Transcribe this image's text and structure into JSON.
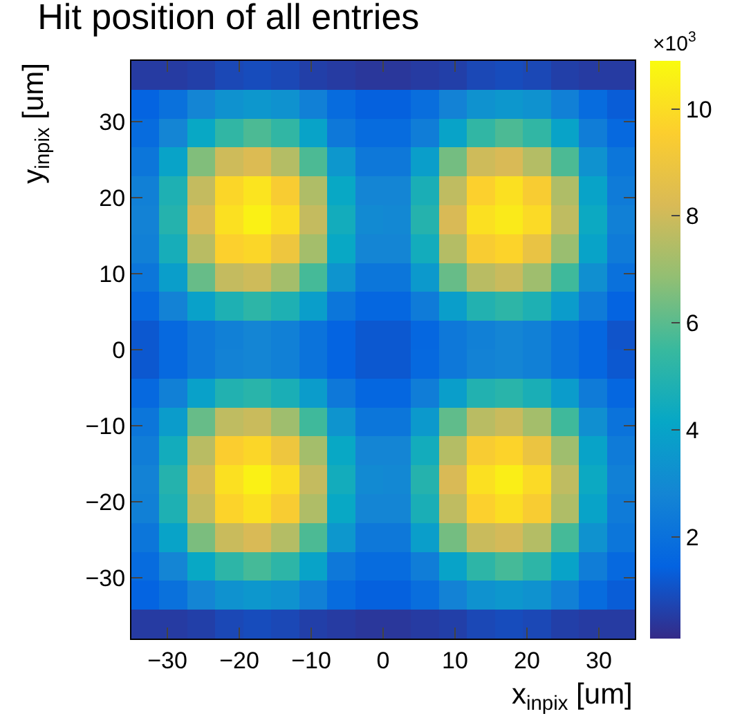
{
  "chart_data": {
    "type": "heatmap",
    "title": "Hit position of all entries",
    "xlabel": "x$_{inpix}$ [um]",
    "ylabel": "y$_{inpix}$ [um]",
    "clabel": "×10$^{3}$",
    "xlim": [
      -35,
      35
    ],
    "ylim": [
      -38,
      38
    ],
    "xticks": [
      -30,
      -20,
      -10,
      0,
      10,
      20,
      30
    ],
    "yticks": [
      -30,
      -20,
      -10,
      0,
      10,
      20,
      30
    ],
    "clim": [
      0.1,
      10.9
    ],
    "cticks": [
      2,
      4,
      6,
      8,
      10
    ],
    "cells": [
      [
        0.5,
        0.5,
        0.6,
        0.8,
        0.9,
        0.8,
        0.6,
        0.5,
        0.4,
        0.4,
        0.5,
        0.6,
        0.8,
        0.9,
        0.8,
        0.6,
        0.5,
        0.5
      ],
      [
        1.5,
        2.0,
        2.8,
        3.3,
        3.5,
        3.3,
        2.6,
        1.8,
        1.4,
        1.4,
        1.9,
        2.7,
        3.3,
        3.5,
        3.3,
        2.6,
        1.8,
        1.3
      ],
      [
        1.8,
        2.8,
        4.2,
        5.3,
        5.8,
        5.3,
        4.0,
        2.3,
        1.8,
        1.8,
        2.5,
        4.0,
        5.3,
        5.8,
        5.3,
        4.0,
        2.5,
        1.7
      ],
      [
        2.2,
        4.0,
        6.6,
        8.0,
        8.3,
        7.5,
        5.8,
        3.5,
        2.3,
        2.3,
        3.8,
        6.4,
        8.0,
        8.2,
        7.5,
        5.8,
        3.3,
        2.2
      ],
      [
        2.6,
        4.8,
        7.8,
        9.8,
        10.2,
        9.4,
        7.4,
        4.2,
        2.8,
        2.8,
        4.7,
        7.7,
        9.6,
        10.1,
        9.4,
        7.4,
        4.0,
        2.4
      ],
      [
        2.7,
        5.0,
        8.2,
        10.1,
        10.6,
        10.0,
        7.8,
        4.5,
        3.0,
        2.9,
        5.0,
        8.2,
        10.1,
        10.4,
        9.9,
        7.7,
        4.3,
        2.6
      ],
      [
        2.6,
        4.6,
        7.6,
        9.6,
        9.8,
        9.0,
        7.2,
        4.2,
        2.8,
        2.8,
        4.5,
        7.5,
        9.4,
        9.7,
        8.8,
        7.0,
        4.0,
        2.4
      ],
      [
        2.2,
        3.8,
        6.2,
        7.8,
        8.0,
        7.2,
        5.7,
        3.4,
        2.2,
        2.2,
        3.6,
        6.2,
        7.6,
        7.9,
        7.1,
        5.6,
        3.2,
        2.0
      ],
      [
        1.7,
        2.7,
        3.9,
        4.8,
        5.2,
        4.8,
        3.8,
        2.2,
        1.6,
        1.6,
        2.4,
        3.8,
        4.9,
        5.2,
        4.8,
        3.7,
        2.4,
        1.5
      ],
      [
        1.2,
        1.7,
        2.3,
        2.6,
        2.8,
        2.6,
        2.1,
        1.5,
        1.2,
        1.2,
        1.6,
        2.3,
        2.6,
        2.8,
        2.6,
        2.1,
        1.6,
        1.1
      ],
      [
        1.2,
        1.7,
        2.3,
        2.7,
        2.8,
        2.6,
        2.1,
        1.5,
        1.2,
        1.2,
        1.7,
        2.3,
        2.7,
        2.8,
        2.6,
        2.1,
        1.6,
        1.2
      ],
      [
        1.7,
        2.6,
        3.9,
        4.9,
        5.1,
        4.7,
        3.7,
        2.3,
        1.6,
        1.6,
        2.5,
        3.8,
        4.9,
        5.1,
        4.7,
        3.7,
        2.4,
        1.6
      ],
      [
        2.2,
        3.7,
        6.2,
        7.7,
        7.9,
        7.1,
        5.6,
        3.4,
        2.2,
        2.2,
        3.6,
        6.1,
        7.6,
        7.9,
        7.2,
        5.6,
        3.2,
        2.1
      ],
      [
        2.5,
        4.5,
        7.6,
        9.5,
        9.8,
        9.0,
        7.2,
        4.2,
        2.8,
        2.8,
        4.5,
        7.5,
        9.4,
        9.7,
        8.9,
        7.1,
        4.0,
        2.4
      ],
      [
        2.7,
        5.0,
        8.1,
        10.1,
        10.6,
        10.0,
        7.8,
        4.5,
        3.0,
        2.9,
        5.0,
        8.2,
        10.1,
        10.5,
        9.9,
        7.7,
        4.3,
        2.6
      ],
      [
        2.6,
        4.8,
        7.8,
        9.7,
        10.1,
        9.4,
        7.4,
        4.2,
        2.8,
        2.8,
        4.7,
        7.7,
        9.6,
        10.0,
        9.4,
        7.4,
        4.0,
        2.4
      ],
      [
        2.2,
        4.0,
        6.5,
        7.9,
        8.2,
        7.5,
        5.8,
        3.5,
        2.3,
        2.3,
        3.8,
        6.4,
        7.9,
        8.1,
        7.5,
        5.7,
        3.3,
        2.2
      ],
      [
        1.8,
        2.8,
        4.2,
        5.2,
        5.7,
        5.2,
        4.0,
        2.3,
        1.8,
        1.8,
        2.5,
        4.0,
        5.2,
        5.7,
        5.2,
        4.0,
        2.5,
        1.7
      ],
      [
        1.5,
        2.0,
        2.8,
        3.3,
        3.5,
        3.3,
        2.6,
        1.8,
        1.4,
        1.4,
        1.9,
        2.7,
        3.3,
        3.5,
        3.3,
        2.6,
        1.8,
        1.3
      ],
      [
        0.5,
        0.5,
        0.6,
        0.8,
        0.9,
        0.8,
        0.6,
        0.5,
        0.4,
        0.4,
        0.5,
        0.6,
        0.8,
        0.9,
        0.8,
        0.6,
        0.5,
        0.5
      ]
    ]
  }
}
